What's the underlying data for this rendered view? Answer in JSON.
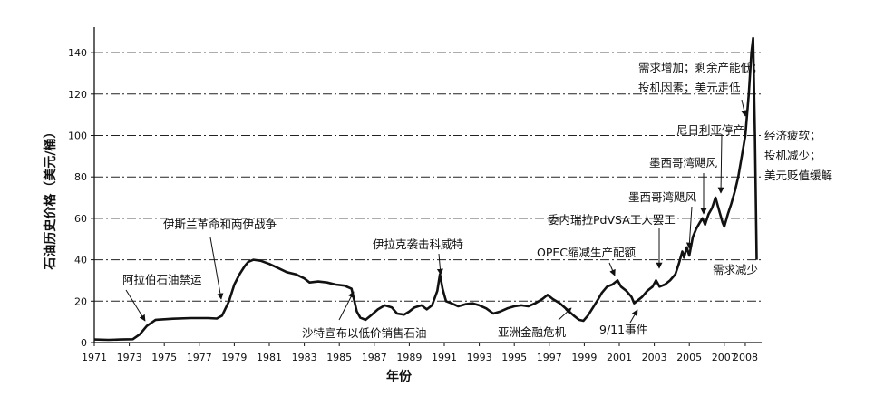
{
  "chart_data": {
    "type": "line",
    "title": "",
    "xlabel": "年份",
    "ylabel": "石油历史价格（美元/桶）",
    "ylim": [
      0,
      150
    ],
    "xlim": [
      1971,
      2008.8
    ],
    "grid": "horizontal dash-dot",
    "y_ticks": [
      "0",
      "20",
      "40",
      "60",
      "80",
      "100",
      "120",
      "140"
    ],
    "x_ticks": [
      "1971",
      "1973",
      "1975",
      "1977",
      "1979",
      "1981",
      "1983",
      "1985",
      "1987",
      "1989",
      "1991",
      "1993",
      "1995",
      "1997",
      "1999",
      "2001",
      "2003",
      "2005",
      "2007",
      "2008"
    ],
    "series": [
      {
        "x": [
          1971,
          1971.8,
          1972.5,
          1973.2,
          1973.6,
          1974.0,
          1974.5,
          1975.5,
          1976.5,
          1977.5,
          1978.0,
          1978.3,
          1978.7,
          1979.0,
          1979.3,
          1979.6,
          1979.8,
          1980.1,
          1980.5,
          1981.0,
          1981.5,
          1982.0,
          1982.5,
          1983.0,
          1983.3,
          1983.8,
          1984.3,
          1984.8,
          1985.3,
          1985.7,
          1986.0,
          1986.2,
          1986.5,
          1986.8,
          1987.2,
          1987.6,
          1988.0,
          1988.3,
          1988.7,
          1989.0,
          1989.3,
          1989.7,
          1990.0,
          1990.3,
          1990.6,
          1990.75,
          1990.9,
          1991.1,
          1991.4,
          1991.8,
          1992.2,
          1992.6,
          1993.0,
          1993.4,
          1993.8,
          1994.2,
          1994.6,
          1995.0,
          1995.4,
          1995.8,
          1996.2,
          1996.6,
          1996.9,
          1997.2,
          1997.6,
          1998.0,
          1998.4,
          1998.7,
          1998.95,
          1999.2,
          1999.5,
          1999.8,
          2000.0,
          2000.3,
          2000.6,
          2000.9,
          2001.1,
          2001.4,
          2001.7,
          2001.85,
          2002.0,
          2002.3,
          2002.6,
          2002.9,
          2003.1,
          2003.3,
          2003.6,
          2003.9,
          2004.2,
          2004.4,
          2004.6,
          2004.7,
          2004.85,
          2005.0,
          2005.2,
          2005.4,
          2005.6,
          2005.75,
          2005.9,
          2006.1,
          2006.3,
          2006.5,
          2006.7,
          2006.9,
          2007.0,
          2007.2,
          2007.4,
          2007.6,
          2007.8,
          2008.0,
          2008.2,
          2008.4,
          2008.55,
          2008.65,
          2008.75,
          2008.85
        ],
        "y": [
          1.5,
          1.3,
          1.5,
          1.6,
          4,
          8,
          11,
          11.5,
          11.8,
          11.8,
          11.6,
          13,
          20,
          28,
          33,
          37,
          39,
          40,
          39.5,
          38,
          36,
          34,
          33,
          31,
          29,
          29.5,
          29,
          28,
          27.5,
          26,
          15,
          12,
          11,
          13,
          16,
          18,
          17,
          14,
          13.5,
          15,
          17,
          18,
          16,
          18,
          25,
          33,
          26,
          20,
          19,
          17.5,
          18.5,
          19,
          18,
          16.5,
          14,
          15,
          16.5,
          17.5,
          18,
          17.5,
          19,
          21,
          23,
          21,
          19,
          16,
          13,
          11,
          10.5,
          13,
          17,
          21,
          24,
          27,
          28,
          30,
          27,
          25,
          22,
          19,
          20,
          22,
          25,
          27,
          30,
          27,
          28,
          30,
          33,
          38,
          44,
          41,
          46,
          42,
          51,
          55,
          58,
          60,
          57,
          62,
          65,
          70,
          64,
          58,
          56,
          62,
          67,
          73,
          80,
          90,
          100,
          120,
          140,
          147,
          100,
          40
        ]
      }
    ],
    "annotations": [
      "阿拉伯石油禁运",
      "伊斯兰革命和两伊战争",
      "沙特宣布以低价销售石油",
      "伊拉克袭击科威特",
      "亚洲金融危机",
      "OPEC缩减生产配额",
      "9/11事件",
      "委内瑞拉PdVSA工人罢工",
      "墨西哥湾飓风",
      "墨西哥湾飓风",
      "尼日利亚停产",
      "需求减少",
      "需求增加；剩余产能低；",
      "投机因素；美元走低",
      "经济疲软；",
      "投机减少；",
      "美元贬值缓解"
    ]
  }
}
